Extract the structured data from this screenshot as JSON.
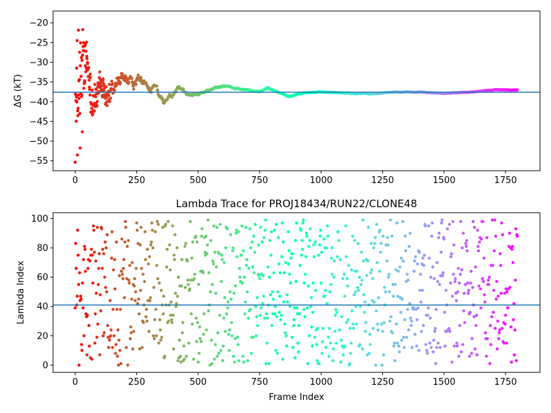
{
  "chart_data": [
    {
      "type": "scatter",
      "title": "",
      "xlabel": "",
      "ylabel": "ΔG (kT)",
      "xlim": [
        -90,
        1890
      ],
      "ylim": [
        -57.5,
        -17
      ],
      "xticks": [
        0,
        250,
        500,
        750,
        1000,
        1250,
        1500,
        1750
      ],
      "yticks": [
        -55,
        -50,
        -45,
        -40,
        -35,
        -30,
        -25,
        -20
      ],
      "hline": -37.6,
      "hline_color": "#1f77b4",
      "colormap": "rainbow (frame index)",
      "n_points": 1800,
      "trace_profile": {
        "x": [
          0,
          10,
          20,
          30,
          40,
          60,
          80,
          100,
          130,
          160,
          200,
          230,
          260,
          300,
          330,
          360,
          400,
          420,
          450,
          500,
          550,
          600,
          650,
          700,
          750,
          780,
          820,
          870,
          900,
          950,
          1000,
          1100,
          1200,
          1300,
          1400,
          1500,
          1600,
          1700,
          1800
        ],
        "y": [
          -38,
          -37,
          -38,
          -40,
          -38,
          -37,
          -38,
          -39,
          -38,
          -38,
          -35,
          -36,
          -35,
          -37,
          -36,
          -40,
          -38,
          -36,
          -38,
          -38,
          -37,
          -36,
          -36.5,
          -37,
          -37.5,
          -36.5,
          -37.5,
          -38.5,
          -38,
          -37.8,
          -37.5,
          -37.8,
          -38,
          -37.5,
          -37.6,
          -37.9,
          -37.6,
          -37,
          -37
        ],
        "spread": [
          20,
          19,
          17,
          14,
          10,
          7,
          6,
          5,
          4,
          3.2,
          2.5,
          2.2,
          2,
          1.6,
          1.3,
          1.1,
          1,
          0.8,
          0.6,
          0.5,
          0.4,
          0.3,
          0.3,
          0.25,
          0.2,
          0.2,
          0.2,
          0.2,
          0.2,
          0.15,
          0.15,
          0.12,
          0.1,
          0.1,
          0.1,
          0.1,
          0.1,
          0.1,
          0.1
        ]
      }
    },
    {
      "type": "scatter",
      "title": "Lambda Trace for PROJ18434/RUN22/CLONE48",
      "xlabel": "Frame Index",
      "ylabel": "Lambda Index",
      "xlim": [
        -90,
        1890
      ],
      "ylim": [
        -5,
        104
      ],
      "xticks": [
        0,
        250,
        500,
        750,
        1000,
        1250,
        1500,
        1750
      ],
      "yticks": [
        0,
        20,
        40,
        60,
        80,
        100
      ],
      "hline": 41,
      "hline_color": "#1f77b4",
      "colormap": "rainbow (frame index)",
      "n_points": 1800,
      "lambda_range": [
        0,
        99
      ],
      "frame_step": 1
    }
  ]
}
